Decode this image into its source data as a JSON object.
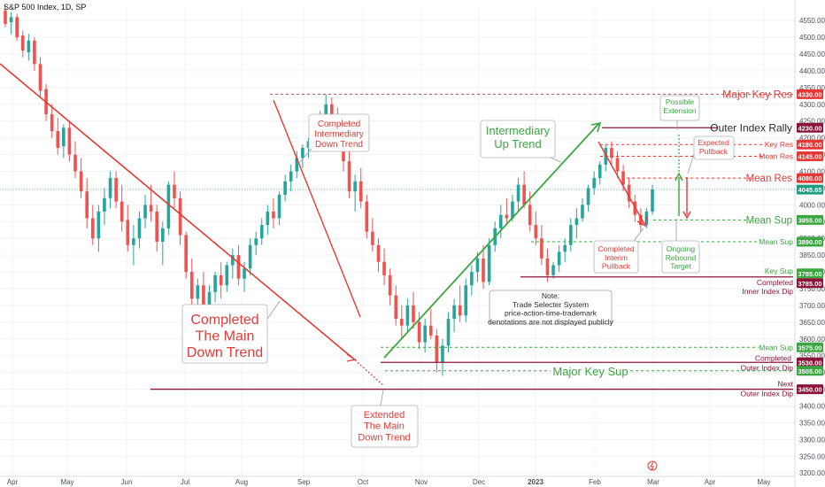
{
  "header": {
    "title": "S&P 500 Index, 1D, SP"
  },
  "colors": {
    "up": "#26a69a",
    "down": "#ef5350",
    "red": "#e53935",
    "green": "#3aa63f",
    "maroon": "#8b1538",
    "teal": "#1e9d83",
    "grid": "#f2f3f6"
  },
  "chart_data": {
    "type": "candlestick",
    "title": "S&P 500 Index, 1D, SP",
    "x_axis_labels": [
      "Apr",
      "May",
      "Jun",
      "Jul",
      "Aug",
      "Sep",
      "Oct",
      "Nov",
      "Dec",
      "2023",
      "Feb",
      "Mar",
      "Apr",
      "May"
    ],
    "y_axis_ticks": [
      4550,
      4500,
      4450,
      4400,
      4350,
      4300,
      4250,
      4200,
      4150,
      4100,
      4050,
      4000,
      3950,
      3900,
      3850,
      3800,
      3750,
      3700,
      3650,
      3600,
      3550,
      3500,
      3450,
      3400,
      3350,
      3300,
      3250,
      3200
    ],
    "ylim": [
      3190,
      4590
    ],
    "last_price": 4045.65,
    "candles_ohlc": [
      [
        4580,
        4595,
        4530,
        4540
      ],
      [
        4545,
        4575,
        4510,
        4560
      ],
      [
        4560,
        4570,
        4490,
        4500
      ],
      [
        4505,
        4520,
        4440,
        4460
      ],
      [
        4455,
        4510,
        4430,
        4490
      ],
      [
        4490,
        4500,
        4400,
        4420
      ],
      [
        4420,
        4440,
        4320,
        4340
      ],
      [
        4345,
        4360,
        4250,
        4270
      ],
      [
        4270,
        4300,
        4200,
        4220
      ],
      [
        4220,
        4260,
        4150,
        4170
      ],
      [
        4175,
        4240,
        4140,
        4230
      ],
      [
        4230,
        4250,
        4130,
        4150
      ],
      [
        4150,
        4190,
        4080,
        4100
      ],
      [
        4100,
        4140,
        4020,
        4040
      ],
      [
        4040,
        4080,
        3930,
        3960
      ],
      [
        3960,
        4000,
        3880,
        3900
      ],
      [
        3900,
        4000,
        3860,
        3980
      ],
      [
        3980,
        4050,
        3940,
        4020
      ],
      [
        4020,
        4100,
        3990,
        4080
      ],
      [
        4080,
        4100,
        3990,
        4010
      ],
      [
        4010,
        4060,
        3920,
        3950
      ],
      [
        3955,
        4000,
        3860,
        3880
      ],
      [
        3880,
        3940,
        3820,
        3900
      ],
      [
        3900,
        3980,
        3870,
        3960
      ],
      [
        3960,
        4030,
        3930,
        4000
      ],
      [
        4000,
        4060,
        3950,
        3980
      ],
      [
        3980,
        4000,
        3860,
        3890
      ],
      [
        3890,
        3950,
        3820,
        3930
      ],
      [
        3930,
        4070,
        3910,
        4060
      ],
      [
        4060,
        4100,
        3990,
        4020
      ],
      [
        4020,
        4040,
        3880,
        3910
      ],
      [
        3910,
        3920,
        3780,
        3800
      ],
      [
        3800,
        3840,
        3700,
        3720
      ],
      [
        3720,
        3780,
        3660,
        3760
      ],
      [
        3760,
        3800,
        3640,
        3670
      ],
      [
        3670,
        3760,
        3650,
        3740
      ],
      [
        3740,
        3800,
        3710,
        3790
      ],
      [
        3790,
        3830,
        3720,
        3760
      ],
      [
        3760,
        3830,
        3740,
        3820
      ],
      [
        3820,
        3870,
        3780,
        3850
      ],
      [
        3850,
        3880,
        3760,
        3780
      ],
      [
        3780,
        3830,
        3740,
        3810
      ],
      [
        3810,
        3900,
        3790,
        3880
      ],
      [
        3880,
        3920,
        3850,
        3900
      ],
      [
        3900,
        3960,
        3880,
        3940
      ],
      [
        3940,
        4000,
        3910,
        3980
      ],
      [
        3980,
        4020,
        3930,
        3960
      ],
      [
        3960,
        4040,
        3940,
        4030
      ],
      [
        4030,
        4090,
        4010,
        4070
      ],
      [
        4070,
        4120,
        4040,
        4100
      ],
      [
        4100,
        4160,
        4080,
        4140
      ],
      [
        4140,
        4180,
        4110,
        4170
      ],
      [
        4170,
        4200,
        4140,
        4190
      ],
      [
        4190,
        4240,
        4170,
        4230
      ],
      [
        4230,
        4280,
        4200,
        4270
      ],
      [
        4270,
        4330,
        4250,
        4300
      ],
      [
        4300,
        4320,
        4240,
        4260
      ],
      [
        4260,
        4290,
        4180,
        4200
      ],
      [
        4200,
        4230,
        4100,
        4130
      ],
      [
        4130,
        4160,
        4020,
        4040
      ],
      [
        4040,
        4090,
        3980,
        4070
      ],
      [
        4070,
        4110,
        3990,
        4010
      ],
      [
        4010,
        4030,
        3900,
        3920
      ],
      [
        3920,
        3960,
        3860,
        3880
      ],
      [
        3880,
        3900,
        3800,
        3830
      ],
      [
        3830,
        3870,
        3760,
        3790
      ],
      [
        3790,
        3810,
        3700,
        3730
      ],
      [
        3730,
        3760,
        3640,
        3660
      ],
      [
        3660,
        3700,
        3600,
        3640
      ],
      [
        3640,
        3720,
        3620,
        3700
      ],
      [
        3700,
        3740,
        3630,
        3650
      ],
      [
        3650,
        3680,
        3570,
        3590
      ],
      [
        3590,
        3660,
        3560,
        3640
      ],
      [
        3640,
        3690,
        3600,
        3610
      ],
      [
        3610,
        3630,
        3500,
        3530
      ],
      [
        3530,
        3600,
        3490,
        3580
      ],
      [
        3580,
        3680,
        3560,
        3660
      ],
      [
        3660,
        3720,
        3620,
        3700
      ],
      [
        3700,
        3760,
        3650,
        3670
      ],
      [
        3670,
        3780,
        3650,
        3760
      ],
      [
        3760,
        3820,
        3730,
        3800
      ],
      [
        3800,
        3860,
        3770,
        3840
      ],
      [
        3840,
        3880,
        3750,
        3770
      ],
      [
        3770,
        3900,
        3760,
        3880
      ],
      [
        3880,
        3950,
        3860,
        3930
      ],
      [
        3930,
        4000,
        3900,
        3970
      ],
      [
        3970,
        4020,
        3940,
        3960
      ],
      [
        3960,
        4030,
        3950,
        4010
      ],
      [
        4010,
        4080,
        3980,
        4060
      ],
      [
        4060,
        4100,
        3990,
        4000
      ],
      [
        4000,
        4040,
        3920,
        3940
      ],
      [
        3940,
        3980,
        3880,
        3900
      ],
      [
        3900,
        3940,
        3820,
        3840
      ],
      [
        3840,
        3870,
        3770,
        3790
      ],
      [
        3790,
        3830,
        3780,
        3820
      ],
      [
        3820,
        3880,
        3800,
        3860
      ],
      [
        3860,
        3900,
        3830,
        3880
      ],
      [
        3880,
        3960,
        3860,
        3940
      ],
      [
        3940,
        3990,
        3900,
        3960
      ],
      [
        3960,
        4020,
        3950,
        4000
      ],
      [
        4000,
        4060,
        3980,
        4050
      ],
      [
        4050,
        4100,
        4030,
        4080
      ],
      [
        4080,
        4130,
        4060,
        4120
      ],
      [
        4120,
        4180,
        4100,
        4170
      ],
      [
        4170,
        4190,
        4120,
        4140
      ],
      [
        4140,
        4160,
        4080,
        4100
      ],
      [
        4100,
        4120,
        4040,
        4060
      ],
      [
        4060,
        4080,
        3990,
        4010
      ],
      [
        4010,
        4030,
        3950,
        3970
      ],
      [
        3970,
        3990,
        3920,
        3940
      ],
      [
        3940,
        3990,
        3930,
        3980
      ],
      [
        3980,
        4060,
        3970,
        4045.65
      ]
    ]
  },
  "levels": [
    {
      "label": "Major Key Res",
      "value": "4330.00",
      "style": "red-big"
    },
    {
      "label": "Outer Index Rally",
      "value": "4230.00",
      "style": "maroon-big"
    },
    {
      "label": "Key Res",
      "value": "4180.00",
      "style": "red-small"
    },
    {
      "label": "Mean Res",
      "value": "4145.00",
      "style": "red-small"
    },
    {
      "label": "Mean Res",
      "value": "4080.00",
      "style": "red-big"
    },
    {
      "label": "",
      "value": "4045.65",
      "style": "teal-price"
    },
    {
      "label": "Mean Sup",
      "value": "3955.00",
      "style": "green-big"
    },
    {
      "label": "Mean Sup",
      "value": "3890.00",
      "style": "green-small"
    },
    {
      "label": "Key Sup",
      "value": "3785.00",
      "style": "green-small"
    },
    {
      "label": "Completed",
      "value": "3785.00",
      "style": "maroon-two"
    },
    {
      "label": "Inner Index Dip",
      "value": "",
      "style": "maroon-two-sub"
    },
    {
      "label": "Mean Sup",
      "value": "3575.00",
      "style": "green-small"
    },
    {
      "label": "Completed",
      "value": "3530.00",
      "style": "maroon-two"
    },
    {
      "label": "Outer Index Dip",
      "value": "3505.00",
      "style": "maroon-two-sub"
    },
    {
      "label": "Major Key Sup",
      "value": "",
      "style": "green-big"
    },
    {
      "label": "Next",
      "value": "3450.00",
      "style": "maroon-two"
    },
    {
      "label": "Outer Index Dip",
      "value": "",
      "style": "maroon-two-sub"
    }
  ],
  "annotations": {
    "completed_main_down": "Completed\nThe Main\nDown Trend",
    "completed_intermediary_down": "Completed\nIntermediary\nDown Trend",
    "intermediary_up": "Intermediary\nUp Trend",
    "extended_main_down": "Extended\nThe Main\nDown Trend",
    "note": "Note:\nTrade Selecter System\nprice-action-time-trademark\ndenotations are not displayed publicly",
    "completed_interim_pullback": "Completed\nInterim\nPullback",
    "ongoing_rebound_target": "Ongoing\nRebound\nTarget",
    "possible_extension": "Possible\nExtension",
    "expected_pullback": "Expected\nPullback"
  }
}
